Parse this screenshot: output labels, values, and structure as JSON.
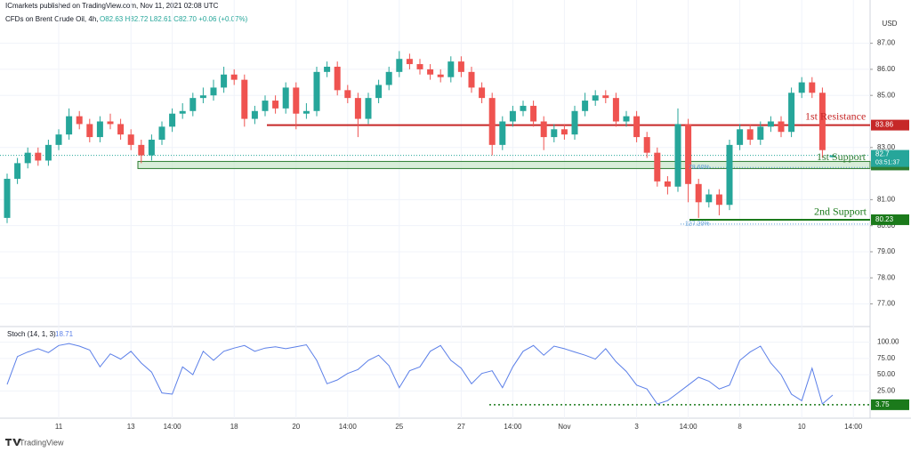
{
  "header": {
    "publisher": "ICmarkets published on TradingView.com, Nov 11, 2021 02:08 UTC",
    "symbol": "CFDs on Brent Crude Oil, 4h,",
    "ohlc": "O82.63 H82.72 L82.61 C82.70 +0.06 (+0.07%)"
  },
  "chart_data": [
    {
      "type": "candlestick",
      "currency": "USD",
      "categories": [
        null,
        null,
        null,
        null,
        null,
        "11",
        null,
        null,
        null,
        null,
        null,
        null,
        "13",
        null,
        null,
        null,
        "14:00",
        null,
        null,
        null,
        null,
        null,
        "18",
        null,
        null,
        null,
        null,
        null,
        "20",
        null,
        null,
        null,
        null,
        "14:00",
        null,
        null,
        null,
        null,
        "25",
        null,
        null,
        null,
        null,
        null,
        "27",
        null,
        null,
        null,
        null,
        "14:00",
        null,
        null,
        null,
        null,
        "Nov",
        null,
        null,
        null,
        null,
        null,
        null,
        "3",
        null,
        null,
        null,
        null,
        "14:00",
        null,
        null,
        null,
        null,
        "8",
        null,
        null,
        null,
        null,
        null,
        "10",
        null,
        null,
        null,
        null,
        "14:00"
      ],
      "open": [
        80.3,
        81.8,
        82.4,
        82.8,
        82.5,
        83.1,
        83.5,
        84.2,
        83.9,
        83.4,
        84.0,
        83.9,
        83.5,
        83.1,
        82.7,
        83.3,
        83.8,
        84.3,
        84.4,
        84.9,
        85.0,
        85.3,
        85.8,
        85.6,
        84.1,
        84.4,
        84.8,
        84.5,
        85.3,
        84.3,
        84.4,
        85.9,
        86.1,
        85.2,
        84.9,
        84.1,
        84.9,
        85.4,
        85.9,
        86.4,
        86.2,
        86.0,
        85.8,
        85.7,
        86.3,
        85.9,
        85.3,
        84.9,
        83.1,
        84.0,
        84.4,
        84.6,
        84.0,
        83.4,
        83.7,
        83.5,
        84.4,
        84.8,
        85.0,
        84.9,
        84.0,
        84.2,
        83.4,
        82.8,
        81.7,
        81.5,
        83.9,
        81.6,
        80.9,
        81.2,
        80.8,
        83.1,
        83.7,
        83.3,
        83.8,
        84.0,
        83.6,
        85.1,
        85.5,
        85.1,
        82.63,
        null,
        null
      ],
      "high": [
        82.0,
        82.6,
        83.0,
        83.0,
        83.3,
        83.7,
        84.5,
        84.4,
        84.1,
        84.2,
        84.3,
        84.1,
        83.7,
        83.3,
        83.5,
        84.0,
        84.5,
        84.7,
        85.1,
        85.3,
        85.6,
        86.1,
        86.0,
        85.8,
        84.6,
        85.0,
        85.0,
        85.5,
        85.5,
        84.7,
        86.1,
        86.3,
        86.3,
        85.4,
        85.1,
        85.1,
        85.6,
        86.1,
        86.7,
        86.6,
        86.4,
        86.2,
        86.0,
        86.5,
        86.5,
        86.1,
        85.5,
        85.1,
        84.2,
        84.6,
        84.8,
        84.8,
        84.2,
        83.9,
        83.9,
        84.6,
        85.1,
        85.2,
        85.2,
        85.1,
        84.4,
        84.4,
        83.6,
        83.0,
        81.9,
        84.5,
        84.1,
        81.8,
        81.4,
        81.4,
        83.3,
        83.9,
        83.9,
        84.0,
        84.2,
        84.2,
        85.3,
        85.7,
        85.7,
        85.3,
        82.72,
        null,
        null
      ],
      "low": [
        80.1,
        81.6,
        82.2,
        82.3,
        82.3,
        82.9,
        83.3,
        83.7,
        83.2,
        83.2,
        83.7,
        83.3,
        82.9,
        82.4,
        82.5,
        83.1,
        83.6,
        84.1,
        84.2,
        84.7,
        84.8,
        85.1,
        85.4,
        83.8,
        83.9,
        84.2,
        84.3,
        84.3,
        83.7,
        84.1,
        84.2,
        85.7,
        85.0,
        84.7,
        83.4,
        83.9,
        84.7,
        85.2,
        85.7,
        86.0,
        85.8,
        85.6,
        85.5,
        85.5,
        85.7,
        85.1,
        84.7,
        82.7,
        82.9,
        83.8,
        84.2,
        83.8,
        82.9,
        83.2,
        83.3,
        83.3,
        84.2,
        84.6,
        84.7,
        83.8,
        83.8,
        83.2,
        82.6,
        81.5,
        81.2,
        81.3,
        80.9,
        80.3,
        80.7,
        80.4,
        80.6,
        82.9,
        83.1,
        83.1,
        83.6,
        83.4,
        83.4,
        84.9,
        84.9,
        82.6,
        82.61,
        null,
        null
      ],
      "close": [
        81.8,
        82.4,
        82.8,
        82.5,
        83.1,
        83.5,
        84.2,
        83.9,
        83.4,
        84.0,
        83.9,
        83.5,
        83.1,
        82.7,
        83.3,
        83.8,
        84.3,
        84.4,
        84.9,
        85.0,
        85.3,
        85.8,
        85.6,
        84.1,
        84.4,
        84.8,
        84.5,
        85.3,
        84.3,
        84.4,
        85.9,
        86.1,
        85.2,
        84.9,
        84.1,
        84.9,
        85.4,
        85.9,
        86.4,
        86.2,
        86.0,
        85.8,
        85.7,
        86.3,
        85.9,
        85.3,
        84.9,
        83.1,
        84.0,
        84.4,
        84.6,
        84.0,
        83.4,
        83.7,
        83.5,
        84.4,
        84.8,
        85.0,
        84.9,
        84.0,
        84.2,
        83.4,
        82.8,
        81.7,
        81.5,
        83.9,
        81.6,
        80.9,
        81.2,
        80.8,
        83.1,
        83.7,
        83.3,
        83.8,
        84.0,
        83.6,
        85.1,
        85.5,
        85.1,
        82.9,
        82.7,
        null,
        null
      ],
      "up_color": "#26a69a",
      "down_color": "#ef5350",
      "ylim": [
        76.2,
        88.25
      ],
      "yticks": [
        {
          "value": 87,
          "label": "87.00"
        },
        {
          "value": 86,
          "label": "86.00"
        },
        {
          "value": 85,
          "label": "85.00"
        },
        {
          "value": 83,
          "label": "83.00"
        },
        {
          "value": 81,
          "label": "81.00"
        },
        {
          "value": 80,
          "label": "80.00"
        },
        {
          "value": 79,
          "label": "79.00"
        },
        {
          "value": 78,
          "label": "78.00"
        },
        {
          "value": 77,
          "label": "77.00"
        }
      ],
      "grid": true,
      "countdown": "03:51:37",
      "last_price_color": "#26a69a",
      "levels": [
        {
          "label": "1st Resistance",
          "value": 83.86,
          "color": "#c62828"
        },
        {
          "label": "1st Support",
          "value": 82.33,
          "color": "#2e7d32"
        },
        {
          "label": "2nd Support",
          "value": 80.23,
          "color": "#1b7a1b"
        }
      ],
      "annotations": [
        "78.60%",
        "127.20%"
      ]
    },
    {
      "type": "line",
      "title": "Stoch (14, 1, 3)",
      "series": [
        {
          "name": "Stoch",
          "color": "#5b7fe8",
          "values": [
            35,
            78,
            85,
            90,
            84,
            95,
            98,
            94,
            88,
            62,
            82,
            74,
            86,
            68,
            54,
            22,
            20,
            62,
            50,
            86,
            72,
            86,
            91,
            95,
            86,
            91,
            93,
            90,
            93,
            96,
            72,
            36,
            42,
            52,
            58,
            72,
            80,
            64,
            30,
            56,
            62,
            86,
            95,
            72,
            60,
            36,
            52,
            56,
            30,
            62,
            86,
            95,
            80,
            94,
            90,
            85,
            80,
            74,
            90,
            70,
            55,
            34,
            28,
            5,
            10,
            22,
            34,
            46,
            40,
            28,
            34,
            72,
            85,
            94,
            68,
            50,
            20,
            10,
            60,
            5,
            18.71,
            null,
            null
          ]
        }
      ],
      "ylim": [
        -6,
        120
      ],
      "yticks": [
        {
          "value": 100,
          "label": "100.00"
        },
        {
          "value": 75,
          "label": "75.00"
        },
        {
          "value": 50,
          "label": "50.00"
        },
        {
          "value": 25,
          "label": "25.00"
        }
      ],
      "level": 3.75,
      "level_color": "#1b7a1b"
    }
  ],
  "footer": "TradingView"
}
